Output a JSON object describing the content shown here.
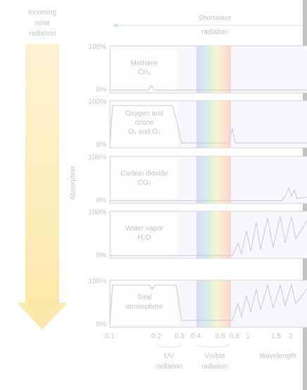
{
  "header": {
    "incoming": [
      "Incoming",
      "solar",
      "radiation"
    ],
    "shortwave": [
      "Shortwave",
      "radiation"
    ]
  },
  "axis": {
    "label": "Absorption",
    "top": "100%",
    "bottom": "0%",
    "ticks": [
      "0.1",
      "0.2",
      "0.3",
      "0.4",
      "0.6",
      "0.8",
      "1",
      "1.5",
      "2"
    ]
  },
  "panels": [
    {
      "lines": [
        "Methane",
        "CH₄"
      ]
    },
    {
      "lines": [
        "Oxygen and",
        "ozone",
        "O₂ and O₃"
      ]
    },
    {
      "lines": [
        "Carbon dioxide",
        "CO₂"
      ]
    },
    {
      "lines": [
        "Water vapor",
        "H₂O"
      ]
    },
    {
      "lines": [
        "Total",
        "atmosphere"
      ]
    }
  ],
  "footer": {
    "uv": [
      "UV",
      "radiation"
    ],
    "visible": [
      "Visible",
      "radiation"
    ],
    "wavelength": "Wavelength"
  }
}
